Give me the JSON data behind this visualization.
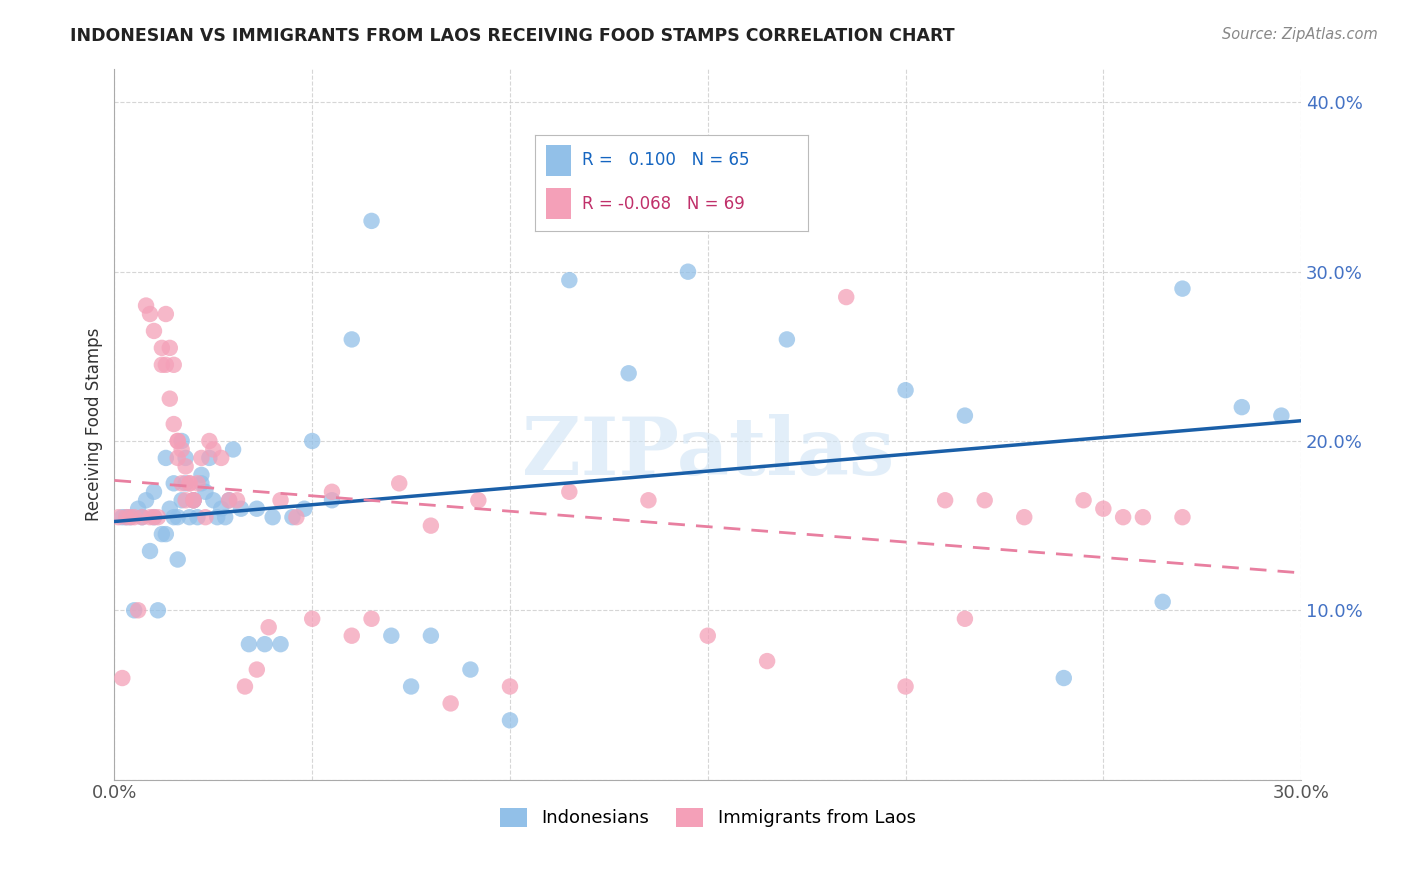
{
  "title": "INDONESIAN VS IMMIGRANTS FROM LAOS RECEIVING FOOD STAMPS CORRELATION CHART",
  "source": "Source: ZipAtlas.com",
  "ylabel": "Receiving Food Stamps",
  "xmin": 0.0,
  "xmax": 0.3,
  "ymin": 0.0,
  "ymax": 0.42,
  "r_blue": 0.1,
  "n_blue": 65,
  "r_pink": -0.068,
  "n_pink": 69,
  "blue_color": "#92c0e8",
  "pink_color": "#f4a0b8",
  "line_blue": "#1a5fa8",
  "line_pink": "#e87fa0",
  "watermark": "ZIPatlas",
  "legend_indonesians": "Indonesians",
  "legend_laos": "Immigrants from Laos",
  "blue_points_x": [
    0.002,
    0.003,
    0.004,
    0.005,
    0.006,
    0.007,
    0.008,
    0.009,
    0.01,
    0.01,
    0.011,
    0.012,
    0.013,
    0.013,
    0.014,
    0.015,
    0.015,
    0.016,
    0.016,
    0.017,
    0.017,
    0.018,
    0.018,
    0.019,
    0.02,
    0.02,
    0.021,
    0.022,
    0.022,
    0.023,
    0.024,
    0.025,
    0.026,
    0.027,
    0.028,
    0.029,
    0.03,
    0.032,
    0.034,
    0.036,
    0.038,
    0.04,
    0.042,
    0.045,
    0.048,
    0.05,
    0.055,
    0.06,
    0.065,
    0.07,
    0.075,
    0.08,
    0.09,
    0.1,
    0.115,
    0.13,
    0.145,
    0.17,
    0.2,
    0.215,
    0.24,
    0.265,
    0.27,
    0.285,
    0.295
  ],
  "blue_points_y": [
    0.155,
    0.155,
    0.155,
    0.1,
    0.16,
    0.155,
    0.165,
    0.135,
    0.17,
    0.155,
    0.1,
    0.145,
    0.19,
    0.145,
    0.16,
    0.175,
    0.155,
    0.155,
    0.13,
    0.2,
    0.165,
    0.175,
    0.19,
    0.155,
    0.165,
    0.165,
    0.155,
    0.175,
    0.18,
    0.17,
    0.19,
    0.165,
    0.155,
    0.16,
    0.155,
    0.165,
    0.195,
    0.16,
    0.08,
    0.16,
    0.08,
    0.155,
    0.08,
    0.155,
    0.16,
    0.2,
    0.165,
    0.26,
    0.33,
    0.085,
    0.055,
    0.085,
    0.065,
    0.035,
    0.295,
    0.24,
    0.3,
    0.26,
    0.23,
    0.215,
    0.06,
    0.105,
    0.29,
    0.22,
    0.215
  ],
  "pink_points_x": [
    0.001,
    0.002,
    0.003,
    0.004,
    0.005,
    0.006,
    0.007,
    0.008,
    0.009,
    0.009,
    0.01,
    0.01,
    0.011,
    0.012,
    0.012,
    0.013,
    0.013,
    0.014,
    0.014,
    0.015,
    0.015,
    0.016,
    0.016,
    0.016,
    0.017,
    0.017,
    0.018,
    0.018,
    0.019,
    0.019,
    0.02,
    0.02,
    0.021,
    0.022,
    0.023,
    0.024,
    0.025,
    0.027,
    0.029,
    0.031,
    0.033,
    0.036,
    0.039,
    0.042,
    0.046,
    0.05,
    0.055,
    0.06,
    0.065,
    0.072,
    0.08,
    0.085,
    0.092,
    0.1,
    0.115,
    0.135,
    0.15,
    0.165,
    0.185,
    0.2,
    0.21,
    0.215,
    0.22,
    0.23,
    0.245,
    0.25,
    0.255,
    0.26,
    0.27
  ],
  "pink_points_y": [
    0.155,
    0.06,
    0.155,
    0.155,
    0.155,
    0.1,
    0.155,
    0.28,
    0.275,
    0.155,
    0.265,
    0.155,
    0.155,
    0.255,
    0.245,
    0.275,
    0.245,
    0.255,
    0.225,
    0.245,
    0.21,
    0.2,
    0.2,
    0.19,
    0.195,
    0.175,
    0.185,
    0.165,
    0.175,
    0.175,
    0.165,
    0.165,
    0.175,
    0.19,
    0.155,
    0.2,
    0.195,
    0.19,
    0.165,
    0.165,
    0.055,
    0.065,
    0.09,
    0.165,
    0.155,
    0.095,
    0.17,
    0.085,
    0.095,
    0.175,
    0.15,
    0.045,
    0.165,
    0.055,
    0.17,
    0.165,
    0.085,
    0.07,
    0.285,
    0.055,
    0.165,
    0.095,
    0.165,
    0.155,
    0.165,
    0.16,
    0.155,
    0.155,
    0.155
  ]
}
